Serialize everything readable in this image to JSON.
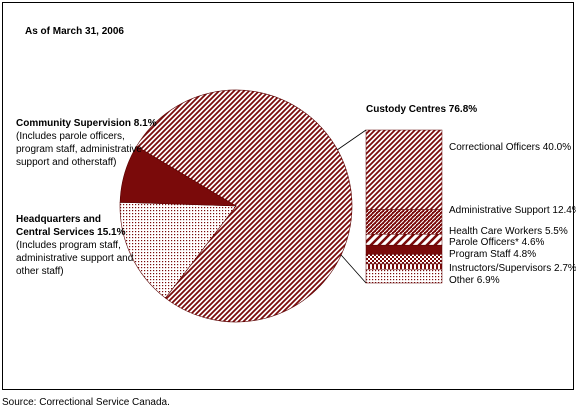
{
  "chart_data": {
    "type": "pie",
    "date_note": "As of March 31, 2006",
    "pie": [
      {
        "key": "custody",
        "label": "Custody Centres",
        "value": 76.8,
        "value_text": "76.8%",
        "note_lines": []
      },
      {
        "key": "headquarters",
        "label_lines": [
          "Headquarters and",
          "Central Services"
        ],
        "value": 15.1,
        "value_text": "15.1%",
        "note_lines": [
          "(Includes program staff,",
          "administrative support and",
          "other staff)"
        ]
      },
      {
        "key": "community",
        "label": "Community Supervision",
        "value": 8.1,
        "value_text": "8.1%",
        "note_lines": [
          "(Includes parole officers,",
          "program staff, administrative",
          "support and otherstaff)"
        ]
      }
    ],
    "breakdown": {
      "parent": "Custody Centres",
      "items": [
        {
          "label": "Correctional Officers",
          "value": 40.0,
          "value_text": "40.0%"
        },
        {
          "label": "Administrative Support",
          "value": 12.4,
          "value_text": "12.4%"
        },
        {
          "label": "Health Care Workers",
          "value": 5.5,
          "value_text": "5.5%"
        },
        {
          "label": "Parole Officers*",
          "value": 4.6,
          "value_text": "4.6%"
        },
        {
          "label": "Program Staff",
          "value": 4.8,
          "value_text": "4.8%"
        },
        {
          "label": "Instructors/Supervisors",
          "value": 2.7,
          "value_text": "2.7%"
        },
        {
          "label": "Other",
          "value": 6.9,
          "value_text": "6.9%"
        }
      ]
    },
    "colors": {
      "primary": "#7a0a0a",
      "light": "#ffffff"
    }
  },
  "source": "Source:  Correctional Service Canada."
}
